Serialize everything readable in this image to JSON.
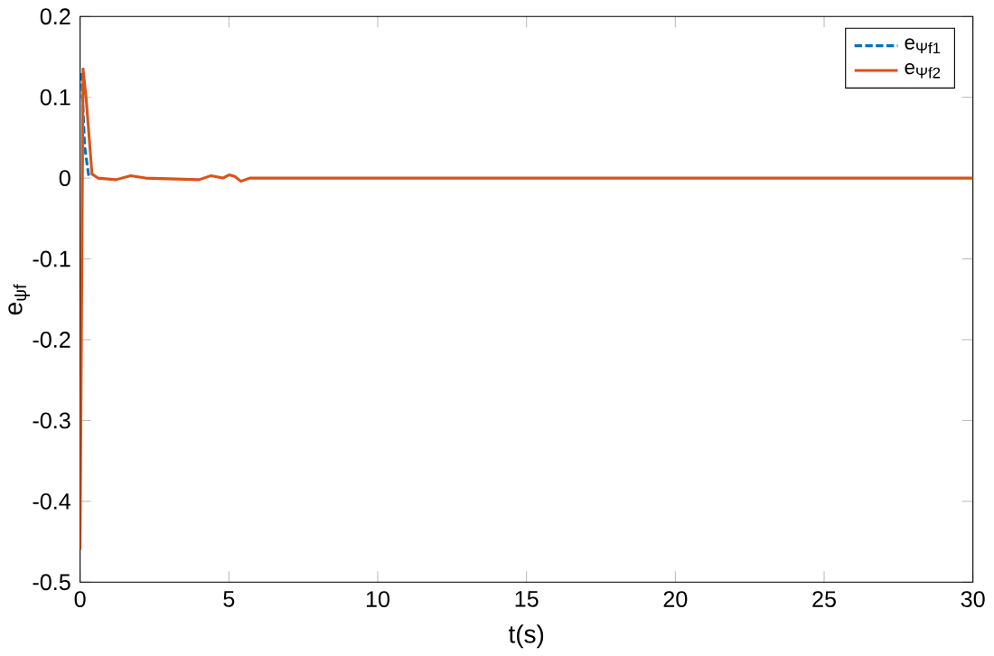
{
  "chart_data": {
    "type": "line",
    "xlabel": "t(s)",
    "ylabel": "e$_{ψf}$",
    "xlim": [
      0,
      30
    ],
    "ylim": [
      -0.5,
      0.2
    ],
    "xticks": [
      0,
      5,
      10,
      15,
      20,
      25,
      30
    ],
    "yticks": [
      -0.5,
      -0.4,
      -0.3,
      -0.2,
      -0.1,
      0,
      0.1,
      0.2
    ],
    "legend": "top right",
    "grid": false,
    "series": [
      {
        "name": "e$_{Ψf1}$",
        "color": "#0072bd",
        "line_style": "dashed",
        "x": [
          0.05,
          0.15,
          0.3
        ],
        "values": [
          0.13,
          0.04,
          0.0
        ]
      },
      {
        "name": "e$_{Ψf2}$",
        "color": "#d95319",
        "line_style": "solid",
        "x": [
          0,
          0.1,
          0.2,
          0.4,
          0.6,
          1.2,
          1.7,
          2.2,
          4,
          4.4,
          4.8,
          5,
          5.2,
          5.4,
          5.7,
          10,
          15,
          20,
          25,
          30
        ],
        "values": [
          -0.46,
          0.135,
          0.1,
          0.005,
          0,
          -0.002,
          0.003,
          0,
          -0.002,
          0.003,
          0,
          0.004,
          0.002,
          -0.004,
          0,
          0,
          0,
          0,
          0,
          0
        ]
      }
    ]
  }
}
